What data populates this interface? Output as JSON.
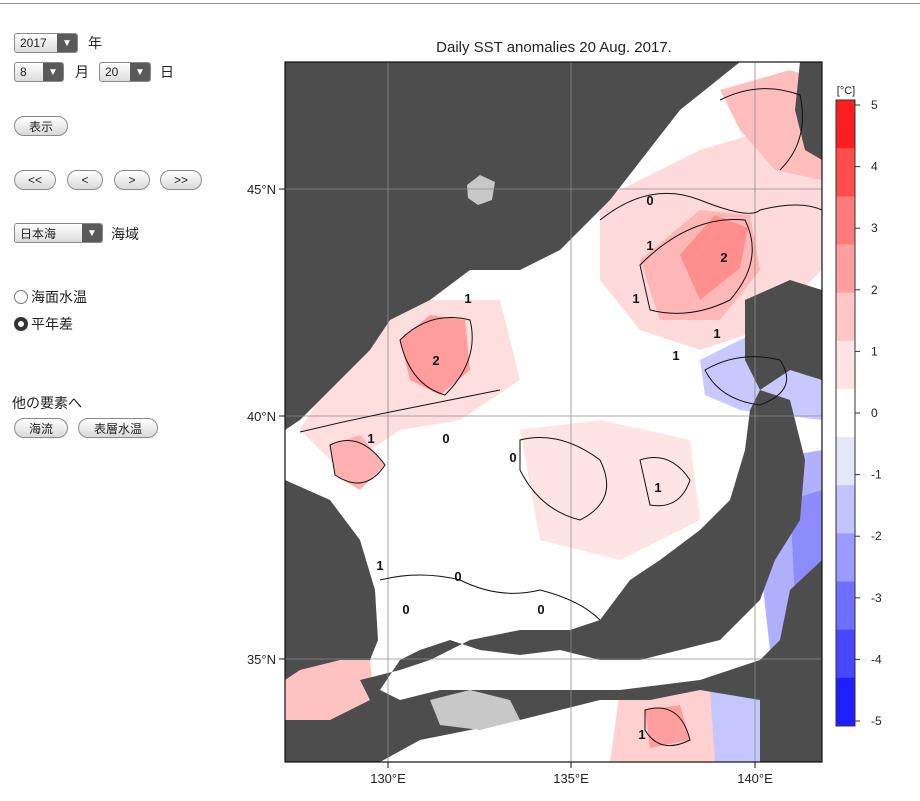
{
  "controls": {
    "year_value": "2017",
    "year_unit": "年",
    "month_value": "8",
    "month_unit": "月",
    "day_value": "20",
    "day_unit": "日",
    "show_button": "表示",
    "nav_buttons": [
      "<<",
      "<",
      ">",
      ">>"
    ],
    "region_value": "日本海",
    "region_unit": "海域",
    "radio_options": [
      {
        "label": "海面水温",
        "selected": false
      },
      {
        "label": "平年差",
        "selected": true
      }
    ],
    "other_elements_label": "他の要素へ",
    "other_buttons": [
      "海流",
      "表層水温"
    ]
  },
  "map": {
    "title": "Daily SST anomalies 20 Aug. 2017.",
    "lat_labels": [
      "45°N",
      "40°N",
      "35°N"
    ],
    "lon_labels": [
      "130°E",
      "135°E",
      "140°E"
    ],
    "contour_labels": [
      "0",
      "1",
      "2",
      "1",
      "1",
      "1",
      "1",
      "2",
      "1",
      "1",
      "0",
      "0",
      "1",
      "0",
      "0",
      "0",
      "1"
    ],
    "colors": {
      "land": "#4d4d4d",
      "ice_land": "#c8c8c8",
      "grid": "#8c8c8c"
    }
  },
  "colorbar": {
    "unit": "[°C]",
    "ticks": [
      "5",
      "4",
      "3",
      "2",
      "1",
      "0",
      "-1",
      "-2",
      "-3",
      "-4",
      "-5"
    ],
    "range": [
      -5,
      5
    ],
    "colors": [
      "#1e1eff",
      "#4747ff",
      "#6f6fff",
      "#9a9aff",
      "#c3c3ff",
      "#e6e6fa",
      "#ffffff",
      "#ffe4e4",
      "#ffc6c6",
      "#ff9e9e",
      "#ff7a7a",
      "#ff4d4d",
      "#ff1e1e"
    ]
  }
}
